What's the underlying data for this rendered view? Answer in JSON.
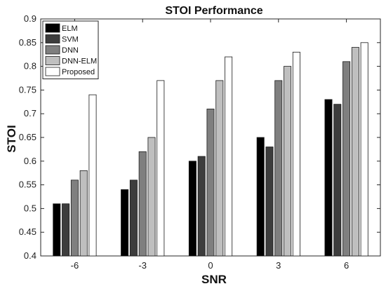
{
  "chart_data": {
    "type": "bar",
    "title": "STOI Performance",
    "xlabel": "SNR",
    "ylabel": "STOI",
    "categories": [
      "-6",
      "-3",
      "0",
      "3",
      "6"
    ],
    "ylim": [
      0.4,
      0.9
    ],
    "yticks": [
      "0.4",
      "0.45",
      "0.5",
      "0.55",
      "0.6",
      "0.65",
      "0.7",
      "0.75",
      "0.8",
      "0.85",
      "0.9"
    ],
    "grid": false,
    "legend_position": "top-left",
    "series": [
      {
        "name": "ELM",
        "color": "#000000",
        "values": [
          0.51,
          0.54,
          0.6,
          0.65,
          0.73
        ]
      },
      {
        "name": "SVM",
        "color": "#3d3d3d",
        "values": [
          0.51,
          0.56,
          0.61,
          0.63,
          0.72
        ]
      },
      {
        "name": "DNN",
        "color": "#7f7f7f",
        "values": [
          0.56,
          0.62,
          0.71,
          0.77,
          0.81
        ]
      },
      {
        "name": "DNN-ELM",
        "color": "#bfbfbf",
        "values": [
          0.58,
          0.65,
          0.77,
          0.8,
          0.84
        ]
      },
      {
        "name": "Proposed",
        "color": "#ffffff",
        "values": [
          0.74,
          0.77,
          0.82,
          0.83,
          0.85
        ]
      }
    ]
  }
}
